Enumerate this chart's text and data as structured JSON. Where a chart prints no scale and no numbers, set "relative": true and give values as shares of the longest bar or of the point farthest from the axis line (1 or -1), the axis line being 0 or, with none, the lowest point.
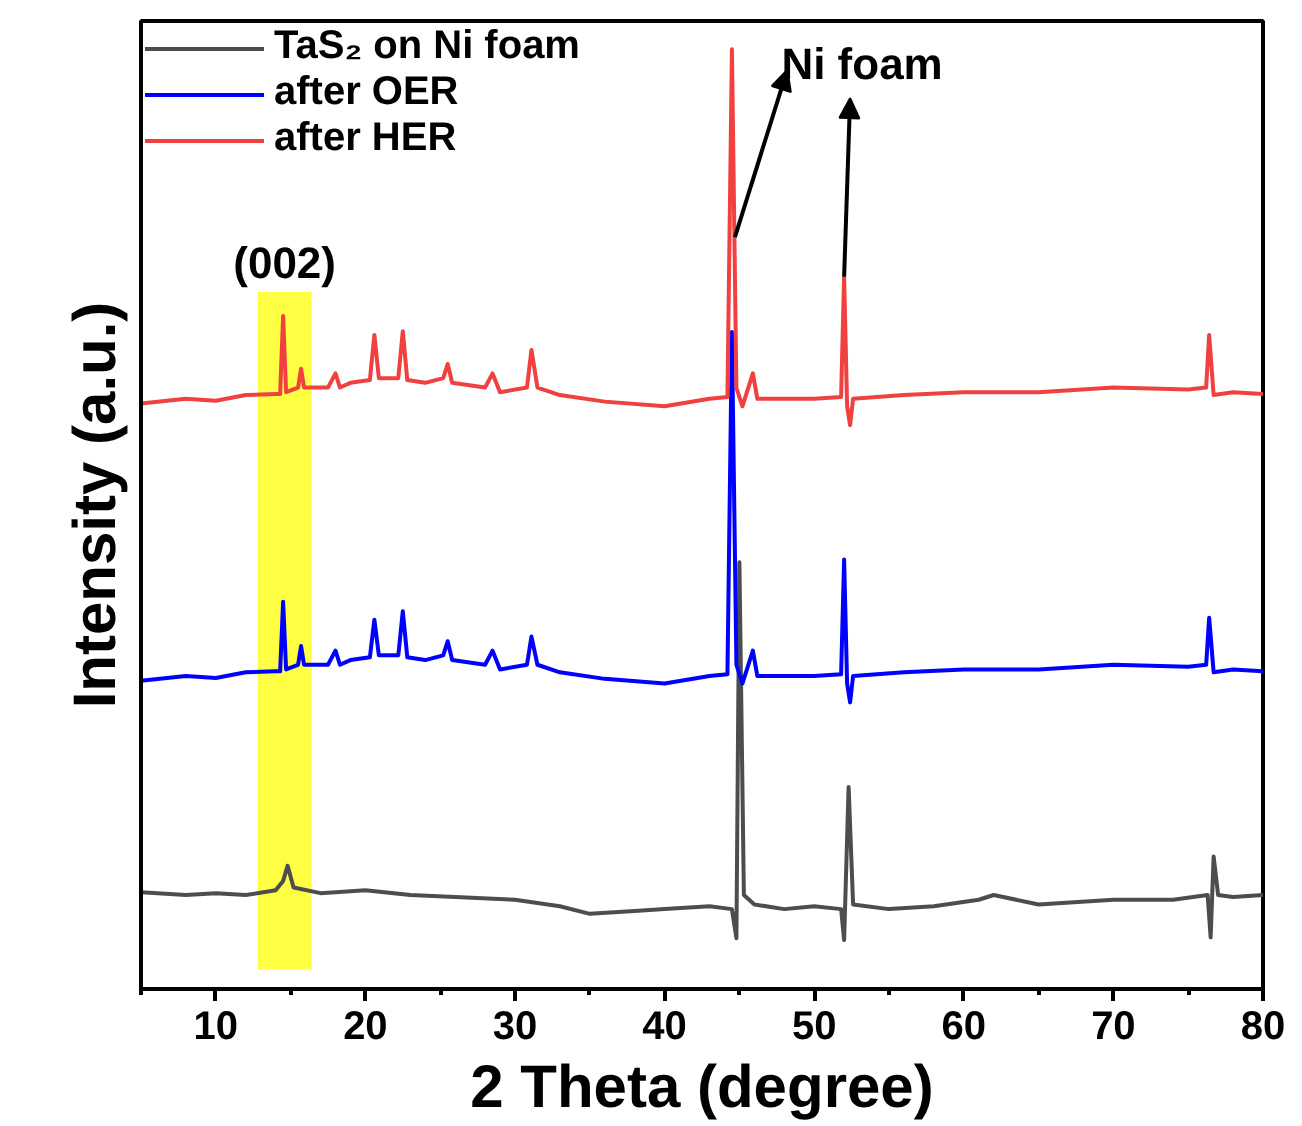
{
  "chart_data": {
    "type": "line",
    "relative": true,
    "xlabel": "2 Theta (degree)",
    "ylabel": "Intensity (a.u.)",
    "xlim": [
      5,
      80
    ],
    "xticks": [
      10,
      20,
      30,
      40,
      50,
      60,
      70,
      80
    ],
    "grid": false,
    "legend": "top left",
    "line_style": "solid",
    "marker": "none",
    "series": [
      {
        "name": "TaS₂ on Ni foam",
        "color": "#4d4d4d",
        "x": [
          5,
          8,
          10,
          12,
          14,
          14.5,
          14.8,
          15.2,
          17,
          20,
          23,
          26,
          30,
          33,
          35,
          38,
          40,
          43,
          44.5,
          44.8,
          45.0,
          45.3,
          46,
          48,
          50,
          51.8,
          52.0,
          52.3,
          52.6,
          55,
          58,
          61,
          62,
          65,
          70,
          74,
          76.3,
          76.5,
          76.7,
          77,
          78,
          80
        ],
        "values": [
          0.103,
          0.1,
          0.102,
          0.1,
          0.105,
          0.115,
          0.131,
          0.108,
          0.102,
          0.105,
          0.1,
          0.098,
          0.095,
          0.088,
          0.08,
          0.083,
          0.085,
          0.088,
          0.085,
          0.054,
          0.454,
          0.1,
          0.09,
          0.085,
          0.088,
          0.085,
          0.052,
          0.215,
          0.09,
          0.085,
          0.088,
          0.095,
          0.1,
          0.09,
          0.095,
          0.095,
          0.1,
          0.055,
          0.141,
          0.1,
          0.098,
          0.1
        ]
      },
      {
        "name": "after OER",
        "color": "#0000ff",
        "x": [
          5,
          8,
          10,
          12,
          14,
          14.3,
          14.5,
          14.7,
          15.5,
          15.7,
          15.9,
          17.5,
          18,
          18.3,
          19,
          20.3,
          20.6,
          20.9,
          22.2,
          22.5,
          22.8,
          24,
          25.2,
          25.5,
          25.8,
          28,
          28.5,
          29,
          30.8,
          31.1,
          31.5,
          33,
          36,
          40,
          43,
          44.2,
          44.5,
          44.8,
          45.2,
          45.9,
          46.2,
          50,
          51.8,
          52.0,
          52.2,
          52.4,
          52.6,
          56,
          60,
          65,
          70,
          75,
          76.2,
          76.4,
          76.7,
          78,
          80
        ],
        "values": [
          0.328,
          0.333,
          0.331,
          0.337,
          0.338,
          0.338,
          0.412,
          0.34,
          0.345,
          0.365,
          0.345,
          0.345,
          0.36,
          0.345,
          0.35,
          0.353,
          0.393,
          0.355,
          0.355,
          0.402,
          0.353,
          0.35,
          0.355,
          0.37,
          0.35,
          0.345,
          0.36,
          0.34,
          0.345,
          0.375,
          0.345,
          0.337,
          0.33,
          0.325,
          0.333,
          0.335,
          0.699,
          0.345,
          0.325,
          0.36,
          0.333,
          0.333,
          0.335,
          0.457,
          0.325,
          0.305,
          0.333,
          0.337,
          0.34,
          0.34,
          0.345,
          0.343,
          0.345,
          0.395,
          0.337,
          0.34,
          0.338
        ]
      },
      {
        "name": "after HER",
        "color": "#f04040",
        "x": [
          5,
          8,
          10,
          12,
          14,
          14.3,
          14.5,
          14.7,
          15.5,
          15.7,
          15.9,
          17.5,
          18,
          18.3,
          19,
          20.3,
          20.6,
          20.9,
          22.2,
          22.5,
          22.8,
          24,
          25.2,
          25.5,
          25.8,
          28,
          28.5,
          29,
          30.8,
          31.1,
          31.5,
          33,
          36,
          40,
          43,
          44.2,
          44.5,
          44.8,
          45.2,
          45.9,
          46.2,
          50,
          51.8,
          52.0,
          52.2,
          52.4,
          52.6,
          56,
          60,
          65,
          70,
          75,
          76.2,
          76.4,
          76.7,
          78,
          80
        ],
        "values": [
          0.623,
          0.628,
          0.626,
          0.632,
          0.633,
          0.633,
          0.716,
          0.635,
          0.64,
          0.66,
          0.64,
          0.64,
          0.655,
          0.64,
          0.645,
          0.648,
          0.696,
          0.65,
          0.65,
          0.7,
          0.648,
          0.645,
          0.65,
          0.665,
          0.645,
          0.64,
          0.655,
          0.635,
          0.64,
          0.68,
          0.64,
          0.632,
          0.625,
          0.62,
          0.628,
          0.63,
          1.0,
          0.64,
          0.62,
          0.655,
          0.628,
          0.628,
          0.63,
          0.758,
          0.62,
          0.6,
          0.628,
          0.632,
          0.635,
          0.635,
          0.64,
          0.638,
          0.64,
          0.696,
          0.632,
          0.635,
          0.633
        ]
      }
    ],
    "bands": [
      {
        "axis": "x",
        "from": 12.8,
        "to": 16.4,
        "label": "(002)",
        "color": "#ffff44"
      }
    ],
    "annotations": [
      {
        "text": "Ni foam",
        "x": 52.0,
        "y": 0.758
      }
    ]
  }
}
